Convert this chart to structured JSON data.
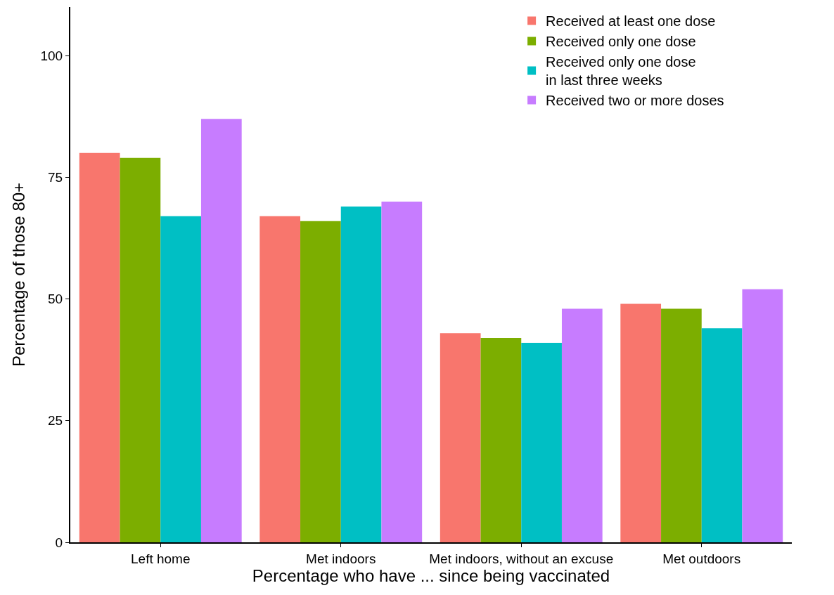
{
  "chart_data": {
    "type": "bar",
    "xlabel": "Percentage who have ... since being vaccinated",
    "ylabel": "Percentage of those 80+",
    "categories": [
      "Left home",
      "Met indoors",
      "Met indoors, without an excuse",
      "Met outdoors"
    ],
    "series": [
      {
        "name": "Received at least one dose",
        "color": "#f8766d",
        "values": [
          80,
          67,
          43,
          49
        ]
      },
      {
        "name": "Received only one dose",
        "color": "#7cae00",
        "values": [
          79,
          66,
          42,
          48
        ]
      },
      {
        "name": "Received only one dose\nin last three weeks",
        "color": "#00bfc4",
        "values": [
          67,
          69,
          41,
          44
        ]
      },
      {
        "name": "Received two or more doses",
        "color": "#c77cff",
        "values": [
          87,
          70,
          48,
          52
        ]
      }
    ],
    "ylim": [
      0,
      110
    ],
    "yticks": [
      0,
      25,
      50,
      75,
      100
    ],
    "legend": "top right"
  }
}
